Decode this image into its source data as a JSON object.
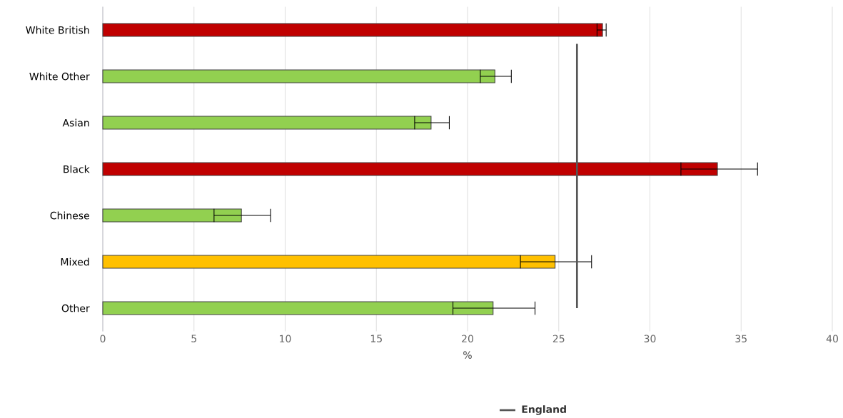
{
  "chart_data": {
    "type": "bar",
    "orientation": "horizontal",
    "xlabel": "%",
    "categories": [
      "White British",
      "White Other",
      "Asian",
      "Black",
      "Chinese",
      "Mixed",
      "Other"
    ],
    "values": [
      27.4,
      21.5,
      18.0,
      33.7,
      7.6,
      24.8,
      21.4
    ],
    "colors": [
      "#c00000",
      "#92d050",
      "#92d050",
      "#c00000",
      "#92d050",
      "#ffc000",
      "#92d050"
    ],
    "errors": [
      [
        27.1,
        27.6
      ],
      [
        20.7,
        22.4
      ],
      [
        17.1,
        19.0
      ],
      [
        31.7,
        35.9
      ],
      [
        6.1,
        9.2
      ],
      [
        22.9,
        26.8
      ],
      [
        19.2,
        23.7
      ]
    ],
    "xlim": [
      0,
      40
    ],
    "xticks": [
      0,
      5,
      10,
      15,
      20,
      25,
      30,
      35,
      40
    ],
    "grid": "x",
    "legend": "bottom",
    "ref_lines": [
      {
        "axis": "x",
        "value": 26.0,
        "label": "England",
        "color": "#555555"
      }
    ]
  }
}
